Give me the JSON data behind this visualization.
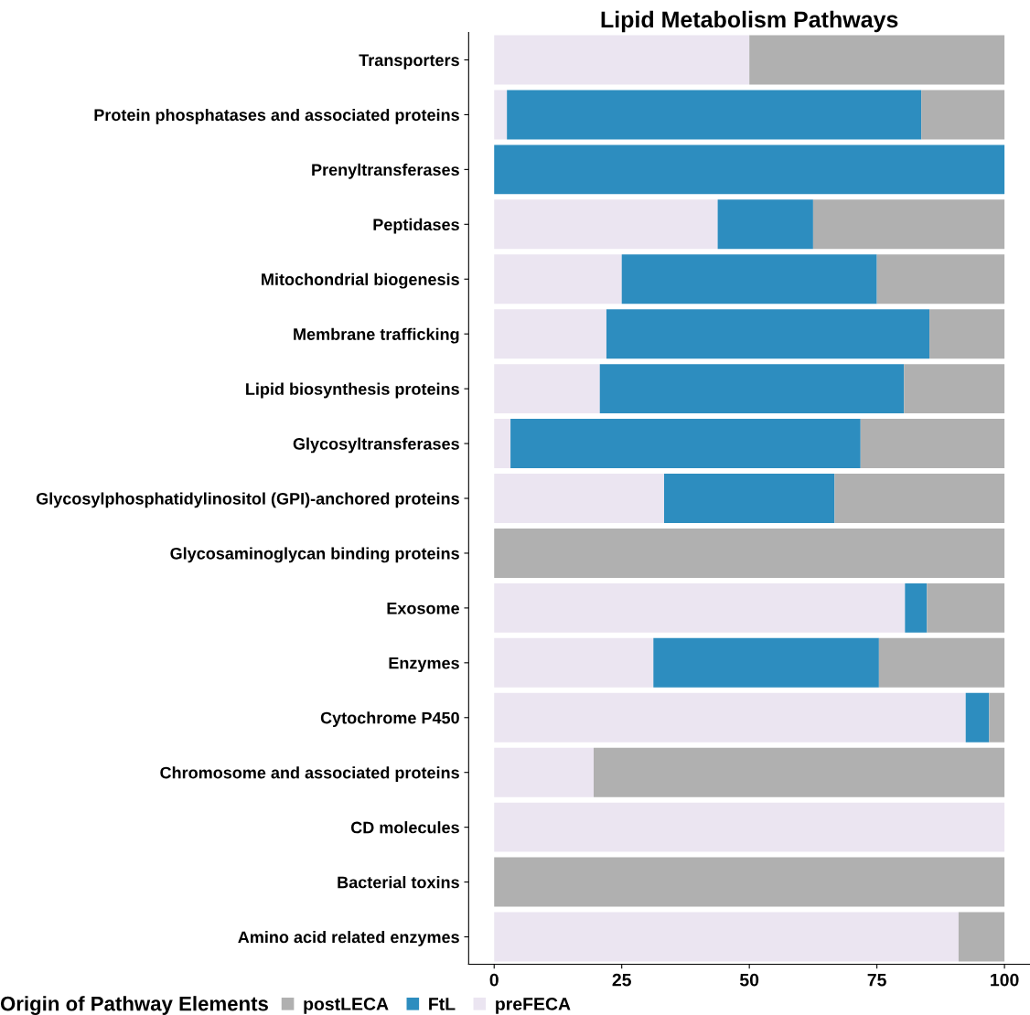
{
  "chart_data": {
    "type": "bar",
    "orientation": "horizontal",
    "stacked": true,
    "title": "Lipid Metabolism Pathways",
    "categories": [
      "Transporters",
      "Protein phosphatases and associated proteins",
      "Prenyltransferases",
      "Peptidases",
      "Mitochondrial biogenesis",
      "Membrane trafficking",
      "Lipid biosynthesis proteins",
      "Glycosyltransferases",
      "Glycosylphosphatidylinositol (GPI)-anchored proteins",
      "Glycosaminoglycan binding proteins",
      "Exosome",
      "Enzymes",
      "Cytochrome P450",
      "Chromosome and associated proteins",
      "CD molecules",
      "Bacterial toxins",
      "Amino acid related enzymes"
    ],
    "series": [
      {
        "name": "preFECA",
        "color": "#ebe5f1",
        "values": [
          50,
          2.5,
          0,
          43.8,
          25,
          22,
          20.7,
          3.2,
          33.3,
          0,
          80.5,
          31.2,
          92.4,
          19.5,
          100,
          0,
          91
        ]
      },
      {
        "name": "FtL",
        "color": "#2d8dbf",
        "values": [
          0,
          81.2,
          100,
          18.7,
          50,
          63.3,
          59.6,
          68.6,
          33.4,
          0,
          4.3,
          44.2,
          4.6,
          0,
          0,
          0,
          0
        ]
      },
      {
        "name": "postLECA",
        "color": "#b0b0b0",
        "values": [
          50,
          16.3,
          0,
          37.5,
          25,
          14.7,
          19.7,
          28.2,
          33.3,
          100,
          15.2,
          24.6,
          3.0,
          80.5,
          0,
          100,
          9
        ]
      }
    ],
    "xlim": [
      -5,
      105
    ],
    "xticks": [
      0,
      25,
      50,
      75,
      100
    ],
    "grid": false,
    "legend": "bottom",
    "legend_title": "Origin of Pathway Elements"
  }
}
